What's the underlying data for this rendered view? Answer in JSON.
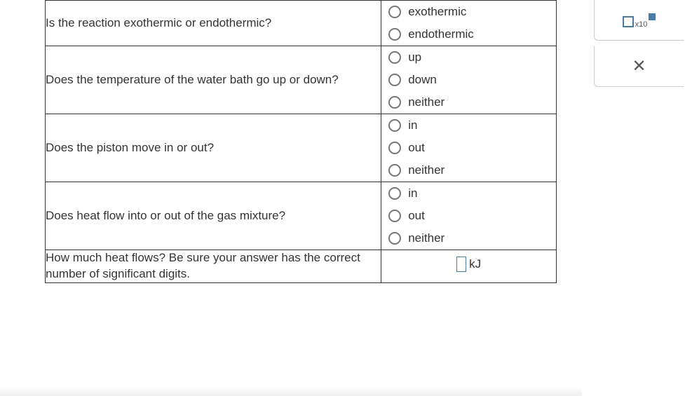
{
  "questions": [
    {
      "prompt": "Is the reaction exothermic or endothermic?",
      "options": [
        "exothermic",
        "endothermic"
      ]
    },
    {
      "prompt": "Does the temperature of the water bath go up or down?",
      "options": [
        "up",
        "down",
        "neither"
      ]
    },
    {
      "prompt": "Does the piston move in or out?",
      "options": [
        "in",
        "out",
        "neither"
      ]
    },
    {
      "prompt": "Does heat flow into or out of the gas mixture?",
      "options": [
        "in",
        "out",
        "neither"
      ]
    }
  ],
  "heat_question": {
    "prompt": "How much heat flows? Be sure your answer has the correct number of significant digits.",
    "unit": "kJ"
  },
  "toolbar": {
    "sci_label": "x10"
  }
}
